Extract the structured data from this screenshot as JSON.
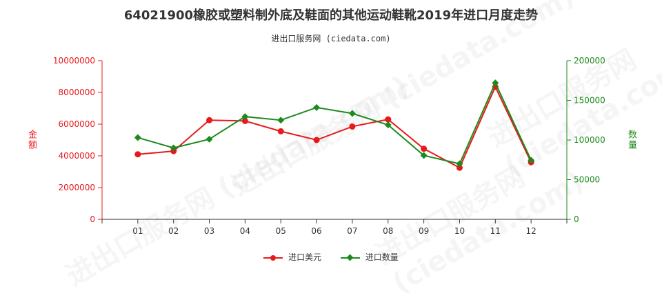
{
  "title": "64021900橡胶或塑料制外底及鞋面的其他运动鞋靴2019年进口月度走势",
  "subtitle": "进出口服务网 (ciedata.com)",
  "watermark": "进出口服务网 (ciedata.com)",
  "colors": {
    "left_axis": "#e8191b",
    "right_axis": "#1c8a1c",
    "value": "#e8191b",
    "quantity": "#1c8a1c"
  },
  "legend": {
    "value_label": "进口美元",
    "quantity_label": "进口数量"
  },
  "chart_data": {
    "type": "line",
    "title": "64021900橡胶或塑料制外底及鞋面的其他运动鞋靴2019年进口月度走势",
    "categories": [
      "01",
      "02",
      "03",
      "04",
      "05",
      "06",
      "07",
      "08",
      "09",
      "10",
      "11",
      "12"
    ],
    "y_left": {
      "label": "金额",
      "ticks": [
        "0",
        "2000000",
        "4000000",
        "6000000",
        "8000000",
        "10000000"
      ],
      "ylim": [
        0,
        10000000
      ]
    },
    "y_right": {
      "label": "数量",
      "ticks": [
        "0",
        "50000",
        "100000",
        "150000",
        "200000"
      ],
      "ylim": [
        0,
        200000
      ]
    },
    "series": [
      {
        "name": "进口美元",
        "axis": "left",
        "marker": "circle",
        "values": [
          4100000,
          4300000,
          6250000,
          6200000,
          5550000,
          5000000,
          5850000,
          6300000,
          4450000,
          3250000,
          8350000,
          3600000
        ]
      },
      {
        "name": "进口数量",
        "axis": "right",
        "marker": "diamond",
        "values": [
          103000,
          90000,
          101000,
          129500,
          125000,
          141000,
          133500,
          119000,
          80500,
          70000,
          172000,
          74500
        ]
      }
    ]
  }
}
